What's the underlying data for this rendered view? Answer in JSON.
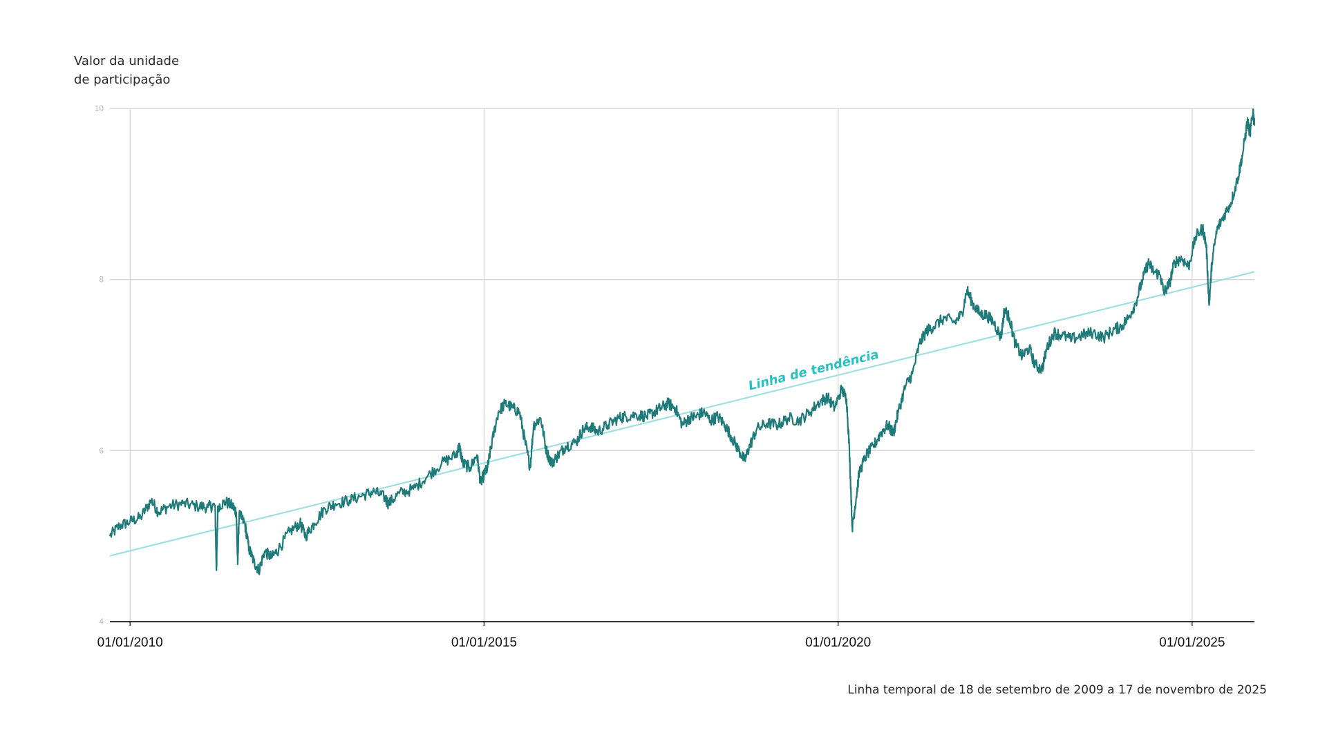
{
  "chart_data": {
    "type": "line",
    "ylabel": [
      "Valor da unidade",
      "de participação"
    ],
    "caption": "Linha temporal de 18 de setembro de 2009 a 17 de novembro de 2025",
    "xlim": [
      2009.715,
      2025.88
    ],
    "ylim": [
      4,
      10
    ],
    "yticks": [
      4,
      6,
      8,
      10
    ],
    "grid": true,
    "xticks": [
      {
        "x": 2010.0,
        "label": "01/01/2010"
      },
      {
        "x": 2015.0,
        "label": "01/01/2015"
      },
      {
        "x": 2020.0,
        "label": "01/01/2020"
      },
      {
        "x": 2025.0,
        "label": "01/01/2025"
      }
    ],
    "series": [
      {
        "name": "Valor da unidade de participação",
        "color": "#1f7a7a",
        "points": [
          [
            2009.715,
            5.0
          ],
          [
            2009.85,
            5.12
          ],
          [
            2010.0,
            5.17
          ],
          [
            2010.15,
            5.22
          ],
          [
            2010.3,
            5.42
          ],
          [
            2010.4,
            5.28
          ],
          [
            2010.55,
            5.35
          ],
          [
            2010.75,
            5.38
          ],
          [
            2010.95,
            5.35
          ],
          [
            2011.1,
            5.34
          ],
          [
            2011.2,
            5.36
          ],
          [
            2011.22,
            4.6
          ],
          [
            2011.24,
            5.35
          ],
          [
            2011.35,
            5.4
          ],
          [
            2011.45,
            5.35
          ],
          [
            2011.5,
            5.28
          ],
          [
            2011.52,
            4.67
          ],
          [
            2011.54,
            5.25
          ],
          [
            2011.62,
            5.15
          ],
          [
            2011.68,
            4.85
          ],
          [
            2011.75,
            4.7
          ],
          [
            2011.82,
            4.6
          ],
          [
            2011.9,
            4.82
          ],
          [
            2012.0,
            4.75
          ],
          [
            2012.1,
            4.85
          ],
          [
            2012.25,
            5.05
          ],
          [
            2012.4,
            5.15
          ],
          [
            2012.48,
            5.0
          ],
          [
            2012.6,
            5.15
          ],
          [
            2012.75,
            5.32
          ],
          [
            2012.9,
            5.38
          ],
          [
            2013.1,
            5.42
          ],
          [
            2013.3,
            5.48
          ],
          [
            2013.45,
            5.52
          ],
          [
            2013.6,
            5.45
          ],
          [
            2013.65,
            5.38
          ],
          [
            2013.8,
            5.5
          ],
          [
            2014.0,
            5.55
          ],
          [
            2014.2,
            5.7
          ],
          [
            2014.4,
            5.85
          ],
          [
            2014.6,
            5.95
          ],
          [
            2014.65,
            6.05
          ],
          [
            2014.7,
            5.85
          ],
          [
            2014.8,
            5.8
          ],
          [
            2014.9,
            5.95
          ],
          [
            2014.95,
            5.62
          ],
          [
            2015.0,
            5.72
          ],
          [
            2015.05,
            5.8
          ],
          [
            2015.1,
            6.05
          ],
          [
            2015.2,
            6.45
          ],
          [
            2015.3,
            6.55
          ],
          [
            2015.4,
            6.5
          ],
          [
            2015.5,
            6.45
          ],
          [
            2015.58,
            6.1
          ],
          [
            2015.65,
            5.8
          ],
          [
            2015.7,
            6.3
          ],
          [
            2015.8,
            6.38
          ],
          [
            2015.88,
            6.0
          ],
          [
            2015.95,
            5.85
          ],
          [
            2016.05,
            5.95
          ],
          [
            2016.15,
            6.05
          ],
          [
            2016.3,
            6.1
          ],
          [
            2016.4,
            6.25
          ],
          [
            2016.5,
            6.28
          ],
          [
            2016.6,
            6.22
          ],
          [
            2016.75,
            6.3
          ],
          [
            2016.9,
            6.38
          ],
          [
            2017.0,
            6.4
          ],
          [
            2017.15,
            6.42
          ],
          [
            2017.3,
            6.4
          ],
          [
            2017.4,
            6.45
          ],
          [
            2017.5,
            6.5
          ],
          [
            2017.6,
            6.55
          ],
          [
            2017.7,
            6.5
          ],
          [
            2017.8,
            6.3
          ],
          [
            2017.9,
            6.38
          ],
          [
            2018.0,
            6.4
          ],
          [
            2018.1,
            6.45
          ],
          [
            2018.2,
            6.35
          ],
          [
            2018.3,
            6.4
          ],
          [
            2018.4,
            6.3
          ],
          [
            2018.5,
            6.15
          ],
          [
            2018.6,
            6.0
          ],
          [
            2018.68,
            5.88
          ],
          [
            2018.75,
            6.05
          ],
          [
            2018.85,
            6.25
          ],
          [
            2019.0,
            6.32
          ],
          [
            2019.15,
            6.3
          ],
          [
            2019.3,
            6.38
          ],
          [
            2019.45,
            6.35
          ],
          [
            2019.6,
            6.45
          ],
          [
            2019.75,
            6.58
          ],
          [
            2019.85,
            6.62
          ],
          [
            2019.95,
            6.5
          ],
          [
            2020.05,
            6.72
          ],
          [
            2020.12,
            6.6
          ],
          [
            2020.16,
            6.0
          ],
          [
            2020.2,
            5.1
          ],
          [
            2020.24,
            5.35
          ],
          [
            2020.3,
            5.75
          ],
          [
            2020.4,
            5.95
          ],
          [
            2020.5,
            6.05
          ],
          [
            2020.6,
            6.2
          ],
          [
            2020.7,
            6.3
          ],
          [
            2020.78,
            6.2
          ],
          [
            2020.85,
            6.45
          ],
          [
            2020.95,
            6.75
          ],
          [
            2021.05,
            6.9
          ],
          [
            2021.15,
            7.25
          ],
          [
            2021.25,
            7.4
          ],
          [
            2021.35,
            7.45
          ],
          [
            2021.5,
            7.55
          ],
          [
            2021.65,
            7.5
          ],
          [
            2021.75,
            7.6
          ],
          [
            2021.82,
            7.88
          ],
          [
            2021.9,
            7.72
          ],
          [
            2022.0,
            7.6
          ],
          [
            2022.1,
            7.58
          ],
          [
            2022.2,
            7.5
          ],
          [
            2022.3,
            7.32
          ],
          [
            2022.35,
            7.65
          ],
          [
            2022.42,
            7.55
          ],
          [
            2022.5,
            7.25
          ],
          [
            2022.6,
            7.1
          ],
          [
            2022.7,
            7.2
          ],
          [
            2022.78,
            7.0
          ],
          [
            2022.88,
            6.95
          ],
          [
            2022.95,
            7.2
          ],
          [
            2023.05,
            7.38
          ],
          [
            2023.15,
            7.35
          ],
          [
            2023.3,
            7.3
          ],
          [
            2023.45,
            7.35
          ],
          [
            2023.6,
            7.38
          ],
          [
            2023.75,
            7.32
          ],
          [
            2023.9,
            7.42
          ],
          [
            2024.0,
            7.45
          ],
          [
            2024.1,
            7.55
          ],
          [
            2024.2,
            7.72
          ],
          [
            2024.3,
            8.0
          ],
          [
            2024.38,
            8.2
          ],
          [
            2024.45,
            8.1
          ],
          [
            2024.55,
            8.05
          ],
          [
            2024.6,
            7.85
          ],
          [
            2024.68,
            7.95
          ],
          [
            2024.75,
            8.2
          ],
          [
            2024.85,
            8.25
          ],
          [
            2024.95,
            8.15
          ],
          [
            2025.05,
            8.5
          ],
          [
            2025.15,
            8.6
          ],
          [
            2025.2,
            8.4
          ],
          [
            2025.24,
            7.7
          ],
          [
            2025.28,
            8.2
          ],
          [
            2025.35,
            8.58
          ],
          [
            2025.45,
            8.75
          ],
          [
            2025.55,
            8.9
          ],
          [
            2025.65,
            9.2
          ],
          [
            2025.72,
            9.5
          ],
          [
            2025.78,
            9.85
          ],
          [
            2025.82,
            9.7
          ],
          [
            2025.86,
            9.98
          ],
          [
            2025.88,
            9.8
          ]
        ]
      }
    ],
    "trendline": {
      "name": "Linha de tendência",
      "color": "#9fdfe0",
      "label_color": "#28c1c1",
      "start": [
        2009.715,
        4.77
      ],
      "end": [
        2025.88,
        8.09
      ]
    }
  }
}
